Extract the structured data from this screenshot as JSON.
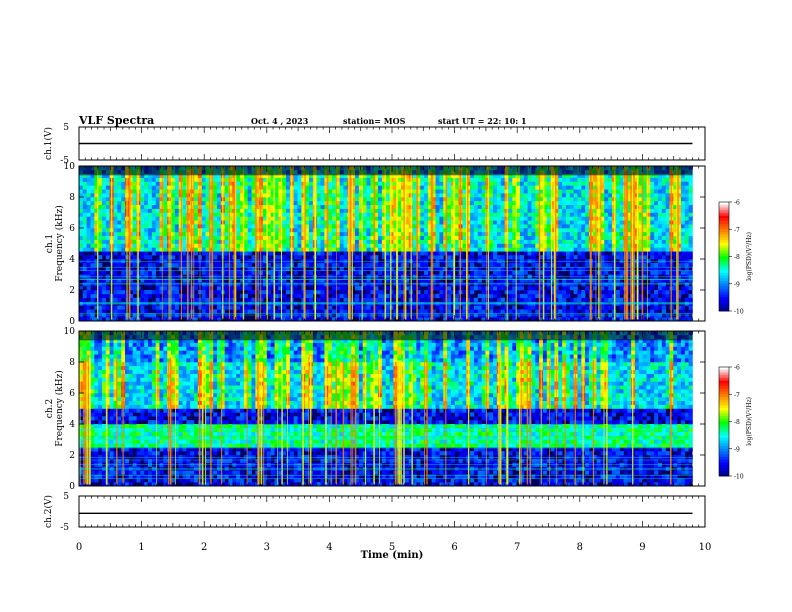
{
  "header": {
    "title": "VLF Spectra",
    "date": "Oct. 4 , 2023",
    "station": "station= MOS",
    "start": "start UT =  22: 10: 1"
  },
  "chart_data": [
    {
      "type": "line",
      "panel": "ch1-voltage",
      "ylabel": "ch.1(V)",
      "ylim": [
        -5,
        5
      ],
      "y_ticks": [
        "5",
        "-5"
      ],
      "x": [
        0,
        9.8
      ],
      "series": [
        {
          "values": [
            0,
            0
          ]
        }
      ]
    },
    {
      "type": "heatmap",
      "panel": "ch1-spectrogram",
      "ylabel": "ch.1\nFrequency (kHz)",
      "ylim": [
        0,
        10
      ],
      "y_ticks": [
        "0",
        "2",
        "4",
        "6",
        "8",
        "10"
      ],
      "xlim": [
        0,
        10
      ],
      "data_extent_min": 9.8,
      "colorbar": {
        "label": "log(PSD)(V²/Hz)",
        "range": [
          -10,
          -6
        ],
        "ticks": [
          "-6",
          "-7",
          "-8",
          "-9",
          "-10"
        ]
      },
      "description_of_intensity": {
        "high_band_khz": [
          4.5,
          9.5
        ],
        "high_level": -7,
        "low_band_khz": [
          0,
          4
        ],
        "low_level": -9.5,
        "burst_count_approx": 90
      }
    },
    {
      "type": "heatmap",
      "panel": "ch2-spectrogram",
      "ylabel": "ch.2\nFrequency (kHz)",
      "ylim": [
        0,
        10
      ],
      "y_ticks": [
        "0",
        "2",
        "4",
        "6",
        "8",
        "10"
      ],
      "xlim": [
        0,
        10
      ],
      "data_extent_min": 9.8,
      "colorbar": {
        "label": "log(PSD)(V²/Hz)",
        "range": [
          -10,
          -6
        ],
        "ticks": [
          "-6",
          "-7",
          "-8",
          "-9",
          "-10"
        ]
      },
      "description_of_intensity": {
        "high_band_khz": [
          5,
          8
        ],
        "high_level": -7,
        "mid_band_khz": [
          2.5,
          4
        ],
        "mid_level": -8.3,
        "low_band_khz": [
          0,
          2.5
        ],
        "low_level": -9.5,
        "burst_count_approx": 75
      }
    },
    {
      "type": "line",
      "panel": "ch2-voltage",
      "ylabel": "ch.2(V)",
      "ylim": [
        -5,
        5
      ],
      "y_ticks": [
        "5",
        "-5"
      ],
      "x": [
        0,
        9.8
      ],
      "series": [
        {
          "values": [
            -0.6,
            -0.6
          ]
        }
      ]
    }
  ],
  "x_axis": {
    "label": "Time  (min)",
    "range": [
      0,
      10
    ],
    "ticks": [
      "0",
      "1",
      "2",
      "3",
      "4",
      "5",
      "6",
      "7",
      "8",
      "9",
      "10"
    ]
  },
  "colors": {
    "colormap": [
      "#000080",
      "#0000ff",
      "#0080ff",
      "#00ffff",
      "#00ff00",
      "#ffff00",
      "#ff8000",
      "#ff0000",
      "#ffffff"
    ],
    "background_night": "#000000",
    "trace": "#000000"
  }
}
